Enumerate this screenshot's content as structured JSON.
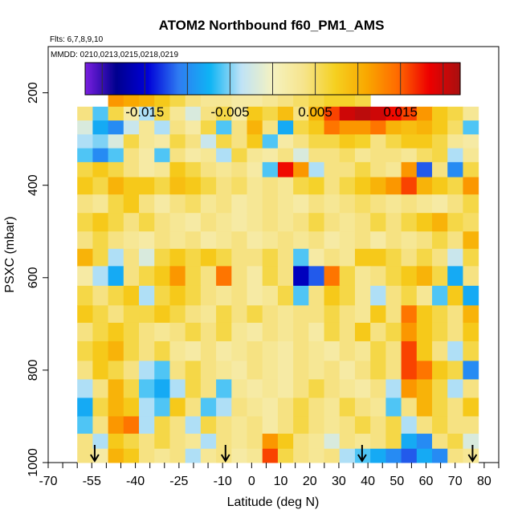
{
  "chart_data": {
    "type": "heatmap",
    "title": "ATOM2 Northbound f60_PM1_AMS",
    "subtitle_flights": "Flts: 6,7,8,9,10",
    "subtitle_dates": "MMDD: 0210,0213,0215,0218,0219",
    "xlabel": "Latitude (deg N)",
    "ylabel": "PSXC (mbar)",
    "xlim": [
      -70,
      85
    ],
    "ylim": [
      1000,
      100
    ],
    "x_ticks": [
      -70,
      -55,
      -40,
      -25,
      -10,
      0,
      10,
      20,
      30,
      40,
      50,
      60,
      70,
      80
    ],
    "x_tick_labels": [
      "-70",
      "-55",
      "-40",
      "-25",
      "-10",
      "0",
      "10",
      "20",
      "30",
      "40",
      "50",
      "60",
      "70",
      "80"
    ],
    "y_ticks": [
      200,
      400,
      600,
      800,
      1000
    ],
    "y_tick_labels": [
      "200",
      "400",
      "600",
      "800",
      "1000"
    ],
    "colorbar": {
      "range": [
        -0.022,
        0.022
      ],
      "tick_values": [
        -0.015,
        -0.005,
        0.005,
        0.015
      ],
      "tick_labels": [
        "-0.015",
        "-0.005",
        "0.005",
        "0.015"
      ],
      "colors": [
        "#7a1fe0",
        "#00008e",
        "#0000d8",
        "#2f7cf2",
        "#0fb4f4",
        "#bfe3f6",
        "#f5f2c0",
        "#f6e48c",
        "#f5d020",
        "#f9a800",
        "#ff6a00",
        "#ee0000",
        "#a81010"
      ]
    },
    "arrows_lat": [
      -54,
      -9,
      38,
      76
    ],
    "lat_range": [
      -60,
      78
    ],
    "profiles_p": [
      215,
      245,
      275,
      305,
      335,
      365,
      400,
      440,
      480,
      520,
      555,
      595,
      640,
      680,
      715,
      760,
      800,
      840,
      880,
      920,
      955,
      985
    ],
    "values": [
      [
        0.012,
        0.013,
        0.012,
        0.011,
        0.01,
        0.008,
        0.006,
        0.004,
        0.003,
        0.003,
        0.002,
        0.002,
        0.003,
        0.004,
        0.005,
        0.006,
        0.007,
        0.007,
        0.006,
        0.005,
        0.003,
        0.002,
        0.004,
        0.005,
        0.006,
        0.004
      ],
      [
        0.004,
        -0.006,
        0.006,
        0.002,
        -0.004,
        0.006,
        0.003,
        -0.002,
        0.004,
        0.006,
        0.002,
        0.008,
        0.006,
        0.009,
        0.004,
        0.01,
        0.016,
        0.02,
        0.021,
        0.02,
        0.018,
        0.016,
        0.012,
        0.008,
        0.006,
        0.003
      ],
      [
        -0.002,
        -0.008,
        -0.01,
        -0.003,
        0.003,
        -0.004,
        0.004,
        0.002,
        0.006,
        -0.006,
        0.004,
        0.01,
        0.004,
        -0.008,
        0.006,
        0.008,
        0.014,
        0.012,
        0.012,
        0.014,
        0.01,
        0.009,
        0.01,
        0.008,
        0.005,
        -0.006
      ],
      [
        -0.004,
        -0.005,
        -0.002,
        0.006,
        0.003,
        0.002,
        0.006,
        0.004,
        -0.003,
        0.006,
        0.004,
        0.008,
        -0.006,
        0.002,
        0.004,
        0.006,
        0.006,
        0.008,
        0.007,
        0.004,
        0.006,
        0.008,
        0.008,
        0.006,
        0.003,
        0.002
      ],
      [
        -0.006,
        -0.01,
        -0.006,
        0.004,
        0.002,
        -0.006,
        0.004,
        0.002,
        0.003,
        -0.004,
        0.006,
        0.003,
        0.002,
        0.004,
        -0.002,
        0.004,
        0.004,
        0.005,
        0.003,
        0.004,
        0.004,
        0.003,
        0.005,
        0.006,
        -0.004,
        0.003
      ],
      [
        0.006,
        0.008,
        0.006,
        0.004,
        0.002,
        0.003,
        0.008,
        0.006,
        0.004,
        0.003,
        0.004,
        0.002,
        -0.006,
        0.018,
        0.012,
        -0.004,
        0.004,
        0.004,
        0.006,
        0.004,
        0.003,
        0.012,
        -0.012,
        0.004,
        -0.01,
        0.006
      ],
      [
        0.008,
        0.006,
        0.01,
        0.008,
        0.008,
        0.006,
        0.009,
        0.008,
        0.006,
        0.004,
        0.005,
        0.003,
        0.004,
        0.003,
        0.006,
        0.007,
        0.004,
        0.006,
        0.008,
        0.01,
        0.012,
        0.016,
        0.01,
        0.008,
        0.006,
        0.012
      ],
      [
        0.004,
        0.003,
        0.006,
        0.008,
        0.004,
        0.002,
        0.004,
        0.005,
        0.003,
        0.004,
        0.002,
        0.003,
        0.004,
        0.003,
        0.002,
        0.004,
        0.003,
        0.004,
        0.005,
        0.004,
        0.003,
        0.004,
        0.003,
        0.002,
        0.004,
        0.006
      ],
      [
        0.006,
        0.008,
        0.006,
        0.004,
        0.006,
        0.004,
        0.003,
        0.002,
        0.004,
        0.003,
        0.002,
        0.003,
        0.004,
        0.003,
        0.004,
        0.006,
        0.004,
        0.003,
        0.004,
        0.006,
        0.004,
        0.006,
        0.008,
        0.01,
        0.006,
        0.005
      ],
      [
        0.004,
        0.006,
        0.004,
        0.003,
        0.002,
        0.004,
        0.003,
        0.004,
        0.002,
        0.003,
        0.004,
        0.002,
        0.003,
        0.004,
        0.003,
        0.004,
        0.002,
        0.003,
        0.004,
        0.002,
        0.004,
        0.003,
        0.004,
        0.006,
        0.004,
        0.01
      ],
      [
        0.01,
        0.006,
        -0.004,
        0.004,
        -0.002,
        0.006,
        0.008,
        0.006,
        0.008,
        0.006,
        0.004,
        0.004,
        0.006,
        0.004,
        -0.006,
        0.002,
        0.004,
        0.003,
        0.008,
        0.008,
        0.006,
        0.004,
        0.006,
        0.004,
        -0.003,
        0.006
      ],
      [
        0.002,
        -0.004,
        -0.008,
        0.004,
        0.006,
        0.008,
        0.012,
        0.006,
        0.004,
        0.014,
        0.004,
        0.002,
        0.006,
        0.004,
        -0.016,
        -0.012,
        0.014,
        0.006,
        0.003,
        0.004,
        0.006,
        0.008,
        0.01,
        0.006,
        -0.008,
        0.004
      ],
      [
        0.006,
        0.004,
        0.006,
        0.008,
        -0.004,
        0.006,
        0.008,
        0.006,
        0.004,
        0.003,
        0.004,
        0.002,
        0.003,
        0.006,
        -0.006,
        0.004,
        0.008,
        0.006,
        0.003,
        -0.004,
        0.004,
        0.006,
        0.003,
        -0.006,
        0.008,
        -0.008
      ],
      [
        0.008,
        0.006,
        0.004,
        0.006,
        0.006,
        0.008,
        0.006,
        0.004,
        0.003,
        0.006,
        0.004,
        0.006,
        0.004,
        0.003,
        0.004,
        0.004,
        0.006,
        0.004,
        0.003,
        0.008,
        0.004,
        0.014,
        0.008,
        0.006,
        0.004,
        0.01
      ],
      [
        0.004,
        0.006,
        0.008,
        0.006,
        0.004,
        0.003,
        0.004,
        0.006,
        0.004,
        0.006,
        0.003,
        0.002,
        0.004,
        0.003,
        0.004,
        0.002,
        0.006,
        0.004,
        0.008,
        0.004,
        0.006,
        0.012,
        0.008,
        0.006,
        0.004,
        0.008
      ],
      [
        0.006,
        0.008,
        0.01,
        0.006,
        0.004,
        0.006,
        0.003,
        0.002,
        0.004,
        0.002,
        0.003,
        0.004,
        0.003,
        0.002,
        0.004,
        0.003,
        0.002,
        0.004,
        0.003,
        0.006,
        0.004,
        0.016,
        0.008,
        0.004,
        -0.004,
        0.006
      ],
      [
        0.004,
        0.008,
        0.006,
        0.004,
        -0.004,
        -0.006,
        0.004,
        0.006,
        0.004,
        0.003,
        0.002,
        0.004,
        0.003,
        0.002,
        0.004,
        0.003,
        0.004,
        0.002,
        0.004,
        0.006,
        0.004,
        0.016,
        0.014,
        0.008,
        0.006,
        -0.01
      ],
      [
        -0.004,
        0.004,
        0.01,
        0.006,
        -0.006,
        -0.008,
        -0.004,
        0.006,
        0.004,
        -0.006,
        0.003,
        0.002,
        0.003,
        0.002,
        0.004,
        0.006,
        0.004,
        0.003,
        0.002,
        0.004,
        -0.004,
        0.012,
        0.01,
        0.006,
        -0.004,
        0.004
      ],
      [
        -0.008,
        0.006,
        0.01,
        0.008,
        -0.004,
        -0.006,
        0.008,
        0.004,
        -0.006,
        -0.004,
        0.004,
        0.003,
        0.002,
        0.004,
        0.006,
        0.004,
        0.003,
        0.006,
        0.004,
        0.003,
        -0.006,
        0.004,
        0.01,
        0.006,
        0.004,
        0.008
      ],
      [
        -0.006,
        0.004,
        0.012,
        0.014,
        -0.004,
        0.006,
        0.004,
        -0.004,
        0.006,
        0.004,
        0.003,
        0.004,
        0.002,
        0.004,
        0.006,
        0.004,
        0.003,
        0.004,
        0.006,
        0.004,
        0.006,
        -0.004,
        0.004,
        0.006,
        0.004,
        0.004
      ],
      [
        0.004,
        -0.004,
        0.008,
        0.006,
        0.004,
        0.006,
        0.004,
        0.003,
        -0.004,
        0.004,
        0.003,
        0.004,
        0.012,
        0.008,
        0.004,
        0.003,
        -0.002,
        0.004,
        0.003,
        0.004,
        0.006,
        -0.008,
        -0.01,
        0.004,
        0.006,
        -0.002
      ],
      [
        0.004,
        0.002,
        0.01,
        0.008,
        0.004,
        0.003,
        0.004,
        -0.004,
        0.003,
        0.004,
        0.002,
        0.003,
        0.016,
        0.006,
        0.004,
        0.003,
        0.004,
        -0.004,
        -0.006,
        -0.008,
        -0.01,
        -0.012,
        -0.008,
        -0.01,
        0.004,
        0.003
      ]
    ]
  }
}
